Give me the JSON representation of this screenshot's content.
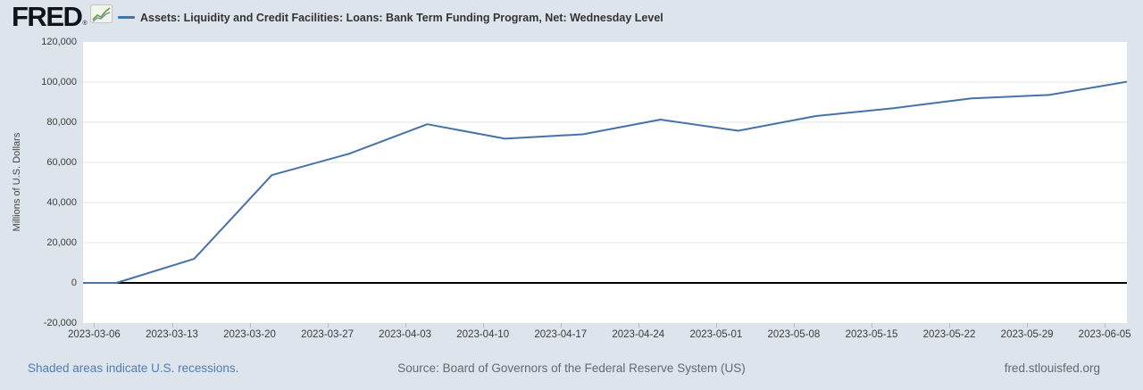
{
  "header": {
    "logo_text": "FRED",
    "registered_mark": "®"
  },
  "footer": {
    "recession_note": "Shaded areas indicate U.S. recessions.",
    "source": "Source: Board of Governors of the Federal Reserve System (US)",
    "site": "fred.stlouisfed.org"
  },
  "colors": {
    "page_bg": "#dde4ec",
    "plot_bg": "#ffffff",
    "line": "#4572a7",
    "grid": "#e6e6e6",
    "zero_line": "#000000",
    "axis_text": "#3d3d3d",
    "link_blue": "#4d7eb3",
    "muted_text": "#66696c",
    "logo_icon_green": "#6f9b3c",
    "logo_icon_blue": "#7d93ad"
  },
  "chart_data": {
    "type": "line",
    "series_name": "Assets: Liquidity and Credit Facilities: Loans: Bank Term Funding Program, Net: Wednesday Level",
    "ylabel": "Millions of U.S. Dollars",
    "xlabel": "",
    "ylim": [
      -20000,
      120000
    ],
    "grid": true,
    "legend_position": "top",
    "x_domain": [
      "2023-03-05",
      "2023-06-07"
    ],
    "x_ticks": [
      "2023-03-06",
      "2023-03-13",
      "2023-03-20",
      "2023-03-27",
      "2023-04-03",
      "2023-04-10",
      "2023-04-17",
      "2023-04-24",
      "2023-05-01",
      "2023-05-08",
      "2023-05-15",
      "2023-05-22",
      "2023-05-29",
      "2023-06-05"
    ],
    "y_ticks": [
      {
        "value": 120000,
        "label": "120,000"
      },
      {
        "value": 100000,
        "label": "100,000"
      },
      {
        "value": 80000,
        "label": "80,000"
      },
      {
        "value": 60000,
        "label": "60,000"
      },
      {
        "value": 40000,
        "label": "40,000"
      },
      {
        "value": 20000,
        "label": "20,000"
      },
      {
        "value": 0,
        "label": "0"
      },
      {
        "value": -20000,
        "label": "-20,000"
      }
    ],
    "points": [
      [
        "2023-03-01",
        0
      ],
      [
        "2023-03-08",
        0
      ],
      [
        "2023-03-15",
        11943
      ],
      [
        "2023-03-22",
        53669
      ],
      [
        "2023-03-29",
        64403
      ],
      [
        "2023-04-05",
        79021
      ],
      [
        "2023-04-12",
        71837
      ],
      [
        "2023-04-19",
        73982
      ],
      [
        "2023-04-26",
        81327
      ],
      [
        "2023-05-03",
        75778
      ],
      [
        "2023-05-10",
        83101
      ],
      [
        "2023-05-17",
        87006
      ],
      [
        "2023-05-24",
        91907
      ],
      [
        "2023-05-31",
        93615
      ],
      [
        "2023-06-07",
        100161
      ]
    ]
  }
}
